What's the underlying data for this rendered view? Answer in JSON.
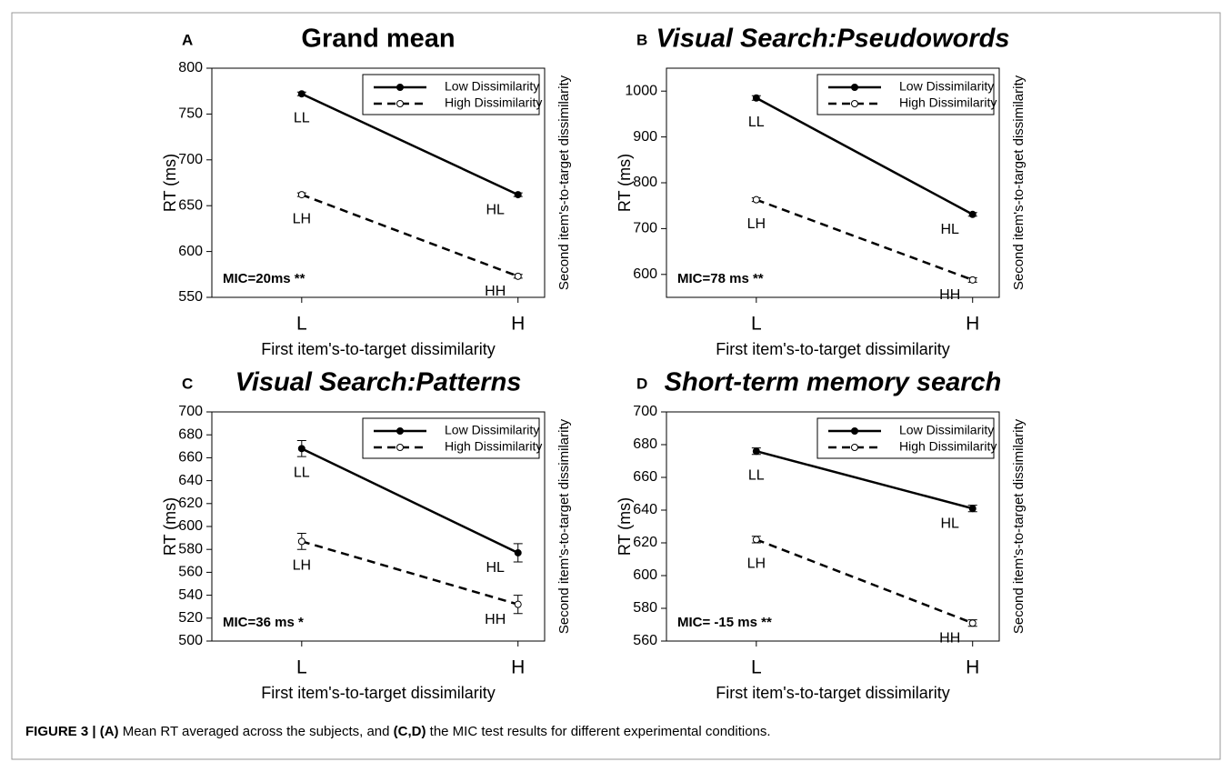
{
  "chart_data": [
    {
      "type": "line",
      "panel": "A",
      "title": "Grand mean",
      "title_italic": false,
      "categories": [
        "L",
        "H"
      ],
      "ylim": [
        550,
        800
      ],
      "yticks": [
        550,
        600,
        650,
        700,
        750,
        800
      ],
      "xlabel": "First item's-to-target dissimilarity",
      "ylabel": "RT (ms)",
      "y2label": "Second item's-to-target dissimilarity",
      "legend": "upper right",
      "annotation": "MIC=20ms **",
      "series": [
        {
          "name": "Low Dissimilarity",
          "color": "#000000",
          "linestyle": "solid",
          "marker": "filled",
          "values": [
            772,
            662
          ],
          "errors": [
            2,
            2
          ],
          "point_labels": [
            "LL",
            "HL"
          ]
        },
        {
          "name": "High Dissimilarity",
          "color": "#000000",
          "linestyle": "dashed",
          "marker": "open",
          "values": [
            662,
            573
          ],
          "errors": [
            2,
            2
          ],
          "point_labels": [
            "LH",
            "HH"
          ]
        }
      ]
    },
    {
      "type": "line",
      "panel": "B",
      "title": "Visual Search:Pseudowords",
      "title_italic": true,
      "categories": [
        "L",
        "H"
      ],
      "ylim": [
        550,
        1050
      ],
      "yticks": [
        600,
        700,
        800,
        900,
        1000
      ],
      "xlabel": "First item's-to-target dissimilarity",
      "ylabel": "RT (ms)",
      "y2label": "Second item's-to-target dissimilarity",
      "legend": "upper right",
      "annotation": "MIC=78 ms **",
      "series": [
        {
          "name": "Low Dissimilarity",
          "color": "#000000",
          "linestyle": "solid",
          "marker": "filled",
          "values": [
            985,
            731
          ],
          "errors": [
            5,
            4
          ],
          "point_labels": [
            "LL",
            "HL"
          ]
        },
        {
          "name": "High Dissimilarity",
          "color": "#000000",
          "linestyle": "dashed",
          "marker": "open",
          "values": [
            763,
            588
          ],
          "errors": [
            4,
            5
          ],
          "point_labels": [
            "LH",
            "HH"
          ]
        }
      ]
    },
    {
      "type": "line",
      "panel": "C",
      "title": "Visual Search:Patterns",
      "title_italic": true,
      "categories": [
        "L",
        "H"
      ],
      "ylim": [
        500,
        700
      ],
      "yticks": [
        500,
        520,
        540,
        560,
        580,
        600,
        620,
        640,
        660,
        680,
        700
      ],
      "xlabel": "First item's-to-target dissimilarity",
      "ylabel": "RT (ms)",
      "y2label": "Second item's-to-target dissimilarity",
      "legend": "upper right",
      "annotation": "MIC=36 ms *",
      "series": [
        {
          "name": "Low Dissimilarity",
          "color": "#000000",
          "linestyle": "solid",
          "marker": "filled",
          "values": [
            668,
            577
          ],
          "errors": [
            7,
            8
          ],
          "point_labels": [
            "LL",
            "HL"
          ]
        },
        {
          "name": "High Dissimilarity",
          "color": "#000000",
          "linestyle": "dashed",
          "marker": "open",
          "values": [
            587,
            532
          ],
          "errors": [
            7,
            8
          ],
          "point_labels": [
            "LH",
            "HH"
          ]
        }
      ]
    },
    {
      "type": "line",
      "panel": "D",
      "title": "Short-term memory search",
      "title_italic": true,
      "categories": [
        "L",
        "H"
      ],
      "ylim": [
        560,
        700
      ],
      "yticks": [
        560,
        580,
        600,
        620,
        640,
        660,
        680,
        700
      ],
      "xlabel": "First item's-to-target dissimilarity",
      "ylabel": "RT (ms)",
      "y2label": "Second item's-to-target dissimilarity",
      "legend": "upper right",
      "annotation": "MIC= -15 ms **",
      "series": [
        {
          "name": "Low Dissimilarity",
          "color": "#000000",
          "linestyle": "solid",
          "marker": "filled",
          "values": [
            676,
            641
          ],
          "errors": [
            2,
            2
          ],
          "point_labels": [
            "LL",
            "HL"
          ]
        },
        {
          "name": "High Dissimilarity",
          "color": "#000000",
          "linestyle": "dashed",
          "marker": "open",
          "values": [
            622,
            571
          ],
          "errors": [
            2,
            2
          ],
          "point_labels": [
            "LH",
            "HH"
          ]
        }
      ]
    }
  ],
  "caption": [
    {
      "text": "FIGURE 3 | ",
      "bold": true
    },
    {
      "text": "(A)",
      "bold": true
    },
    {
      "text": " Mean RT averaged across the subjects, and ",
      "bold": false
    },
    {
      "text": "(C,D)",
      "bold": true
    },
    {
      "text": " the MIC test results for different experimental conditions.",
      "bold": false
    }
  ]
}
